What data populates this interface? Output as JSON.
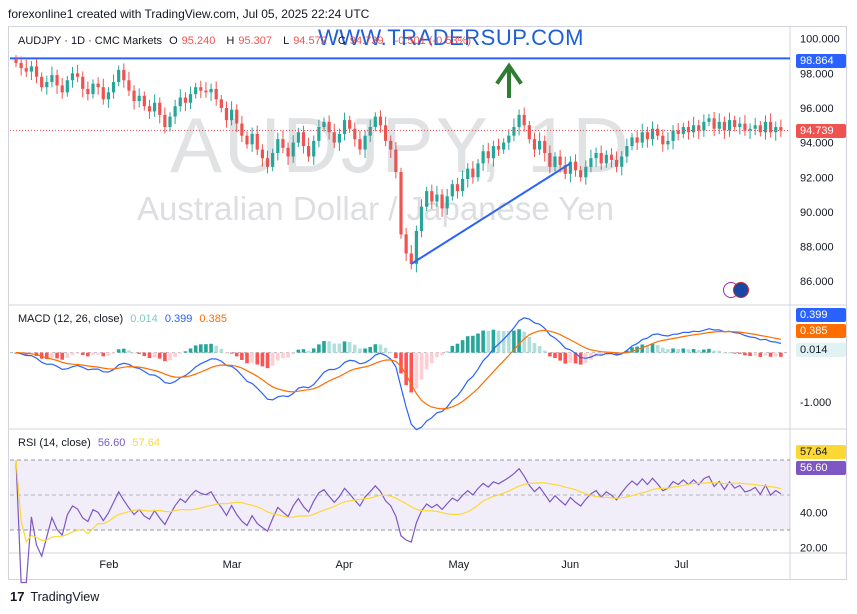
{
  "header": {
    "attribution": "forexonline1 created with TradingView.com, Jul 05, 2025 22:24 UTC"
  },
  "legend": {
    "symbol": "AUDJPY · 1D · CMC Markets",
    "o_label": "O",
    "o_value": "95.240",
    "h_label": "H",
    "h_value": "95.307",
    "l_label": "L",
    "l_value": "94.572",
    "c_label": "C",
    "c_value": "94.739",
    "change": "-0.501 (-0.53%)"
  },
  "watermark": {
    "url": "WWW.TRADERSUP.COM",
    "ticker": "AUDJPY, 1D",
    "name": "Australian Dollar / Japanese Yen"
  },
  "footer": {
    "brand": "TradingView",
    "logo": "17"
  },
  "colors": {
    "up": "#26a69a",
    "down": "#ef5350",
    "macd": "#2962ff",
    "signal": "#ff6d00",
    "rsi": "#7e57c2",
    "rsi_ma": "#fdd835",
    "level": "#2962ff",
    "trend": "#2962ff",
    "arrow": "#2e7d32"
  },
  "icons": [
    "arrow-up-icon",
    "flag-icon",
    "tradingview-logo-icon"
  ],
  "chart_data": [
    {
      "type": "candlestick",
      "title": "AUDJPY · 1D · CMC Markets",
      "x_ticks": [
        "Feb",
        "Mar",
        "Apr",
        "May",
        "Jun",
        "Jul"
      ],
      "y_ticks": [
        "86.000",
        "88.000",
        "90.000",
        "92.000",
        "94.000",
        "96.000",
        "98.000",
        "100.000"
      ],
      "ylim": [
        84.8,
        100.5
      ],
      "close": [
        98.6,
        98.3,
        98.1,
        98.4,
        97.8,
        97.2,
        97.5,
        97.9,
        97.3,
        96.9,
        97.6,
        98.0,
        97.8,
        97.1,
        96.8,
        97.4,
        97.2,
        96.5,
        96.9,
        97.5,
        98.2,
        97.6,
        97.0,
        96.4,
        96.7,
        96.1,
        95.8,
        96.3,
        95.6,
        94.9,
        95.5,
        96.1,
        96.6,
        96.3,
        96.8,
        97.2,
        97.0,
        96.9,
        97.1,
        96.5,
        96.0,
        95.3,
        95.9,
        95.1,
        94.4,
        93.9,
        94.5,
        93.6,
        93.1,
        92.6,
        93.4,
        94.2,
        93.7,
        93.2,
        94.0,
        94.6,
        93.8,
        93.2,
        94.1,
        94.9,
        95.2,
        94.6,
        94.0,
        94.5,
        95.3,
        94.8,
        94.2,
        93.6,
        94.4,
        94.9,
        95.5,
        95.0,
        94.1,
        93.6,
        92.3,
        88.7,
        87.6,
        87.0,
        88.9,
        90.3,
        91.2,
        90.6,
        91.0,
        90.2,
        90.9,
        91.6,
        91.2,
        91.9,
        92.5,
        92.0,
        92.8,
        93.5,
        93.1,
        93.8,
        93.6,
        94.0,
        94.4,
        94.9,
        95.6,
        95.0,
        94.2,
        93.6,
        94.1,
        93.4,
        92.6,
        93.2,
        92.7,
        92.2,
        92.9,
        92.4,
        92.0,
        92.6,
        93.1,
        93.4,
        92.8,
        93.3,
        93.0,
        92.6,
        93.2,
        93.8,
        94.3,
        94.0,
        94.6,
        94.2,
        94.8,
        94.4,
        93.9,
        94.1,
        94.7,
        94.5,
        94.9,
        94.6,
        95.0,
        94.7,
        95.2,
        95.4,
        94.8,
        95.2,
        94.7,
        95.3,
        94.9,
        95.1,
        94.7,
        94.8,
        95.0,
        94.6,
        95.2,
        94.6,
        94.9,
        94.7
      ],
      "close_label": "94.739",
      "level": 98.864,
      "level_label": "98.864",
      "trendline": [
        [
          87.0,
          92.8
        ]
      ]
    },
    {
      "type": "line",
      "title": "MACD (12, 26, close)",
      "series": [
        {
          "name": "MACD",
          "value_label": "0.399"
        },
        {
          "name": "Signal",
          "value_label": "0.385"
        },
        {
          "name": "Histogram",
          "value_label": "0.014"
        }
      ],
      "y_ticks": [
        "-1.000"
      ],
      "ylim": [
        -1.5,
        0.9
      ]
    },
    {
      "type": "line",
      "title": "RSI (14, close)",
      "series": [
        {
          "name": "RSI",
          "value_label": "56.60"
        },
        {
          "name": "RSI MA",
          "value_label": "57.64"
        }
      ],
      "y_ticks": [
        "20.00",
        "40.00"
      ],
      "bands": [
        30,
        70
      ],
      "ylim": [
        18,
        86
      ]
    }
  ]
}
